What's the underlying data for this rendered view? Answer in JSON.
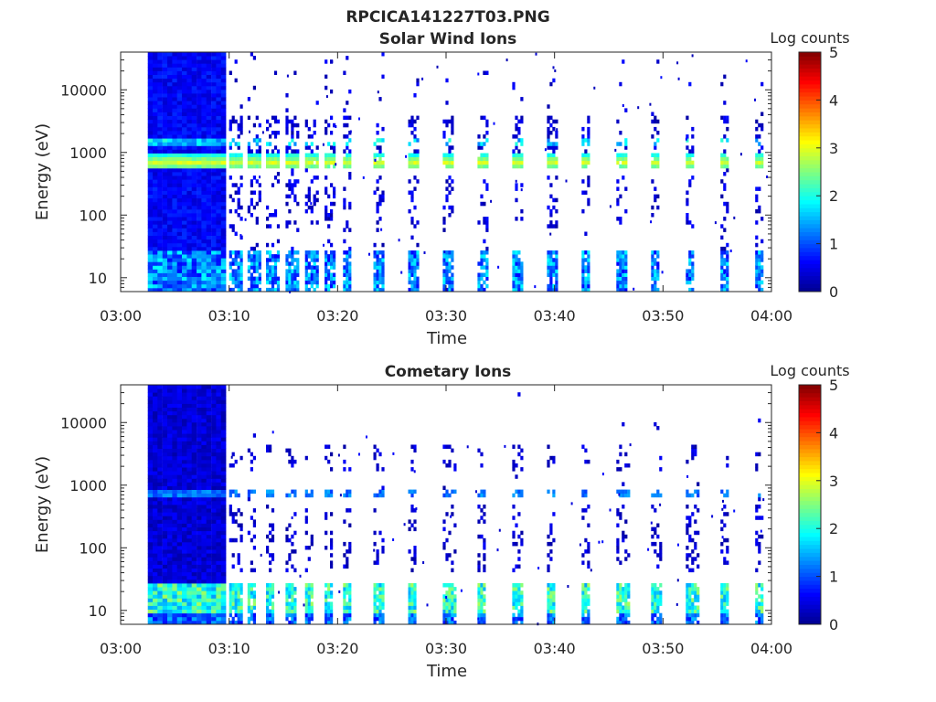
{
  "figure_title": "RPCICA141227T03.PNG",
  "colormap": [
    "#00008f",
    "#0000ff",
    "#0080ff",
    "#00ffff",
    "#80ff80",
    "#ffff00",
    "#ff8000",
    "#ff0000",
    "#800000"
  ],
  "chart_data": [
    {
      "type": "heatmap",
      "title": "Solar Wind Ions",
      "xlabel": "Time",
      "ylabel": "Energy (eV)",
      "xticks": [
        "03:00",
        "03:10",
        "03:20",
        "03:30",
        "03:40",
        "03:50",
        "04:00"
      ],
      "xlim_minutes": [
        0,
        60
      ],
      "yscale": "log",
      "ylim": [
        6,
        40000
      ],
      "yticks": [
        {
          "value": 10,
          "label": "10"
        },
        {
          "value": 100,
          "label": "100"
        },
        {
          "value": 1000,
          "label": "1000"
        },
        {
          "value": 10000,
          "label": "10000"
        }
      ],
      "colorbar": {
        "label": "Log counts",
        "ticks": [
          "0",
          "1",
          "2",
          "3",
          "4",
          "5"
        ],
        "min": 0,
        "max": 5
      },
      "grid": false,
      "data_start_minute": 2.5,
      "continuous_until_minute": 9.3,
      "peak_energy_ev": 650,
      "peak_log_counts": 2.8,
      "low_energy_band_ev": [
        6,
        25
      ],
      "burst_minutes": [
        10.0,
        11.7,
        13.4,
        15.2,
        17.0,
        18.8,
        20.5,
        23.3,
        26.5,
        29.7,
        32.9,
        36.1,
        39.3,
        42.5,
        45.7,
        48.9,
        52.1,
        55.3,
        58.5
      ]
    },
    {
      "type": "heatmap",
      "title": "Cometary Ions",
      "xlabel": "Time",
      "ylabel": "Energy (eV)",
      "xticks": [
        "03:00",
        "03:10",
        "03:20",
        "03:30",
        "03:40",
        "03:50",
        "04:00"
      ],
      "xlim_minutes": [
        0,
        60
      ],
      "yscale": "log",
      "ylim": [
        6,
        40000
      ],
      "yticks": [
        {
          "value": 10,
          "label": "10"
        },
        {
          "value": 100,
          "label": "100"
        },
        {
          "value": 1000,
          "label": "1000"
        },
        {
          "value": 10000,
          "label": "10000"
        }
      ],
      "colorbar": {
        "label": "Log counts",
        "ticks": [
          "0",
          "1",
          "2",
          "3",
          "4",
          "5"
        ],
        "min": 0,
        "max": 5
      },
      "grid": false,
      "data_start_minute": 2.5,
      "continuous_until_minute": 9.3,
      "peak_energy_ev": 13,
      "peak_log_counts": 2.6,
      "mid_energy_band_ev": [
        500,
        800
      ],
      "burst_minutes": [
        10.0,
        11.7,
        13.4,
        15.2,
        17.0,
        18.8,
        20.5,
        23.3,
        26.5,
        29.7,
        32.9,
        36.1,
        39.3,
        42.5,
        45.7,
        48.9,
        52.1,
        55.3,
        58.5
      ]
    }
  ]
}
